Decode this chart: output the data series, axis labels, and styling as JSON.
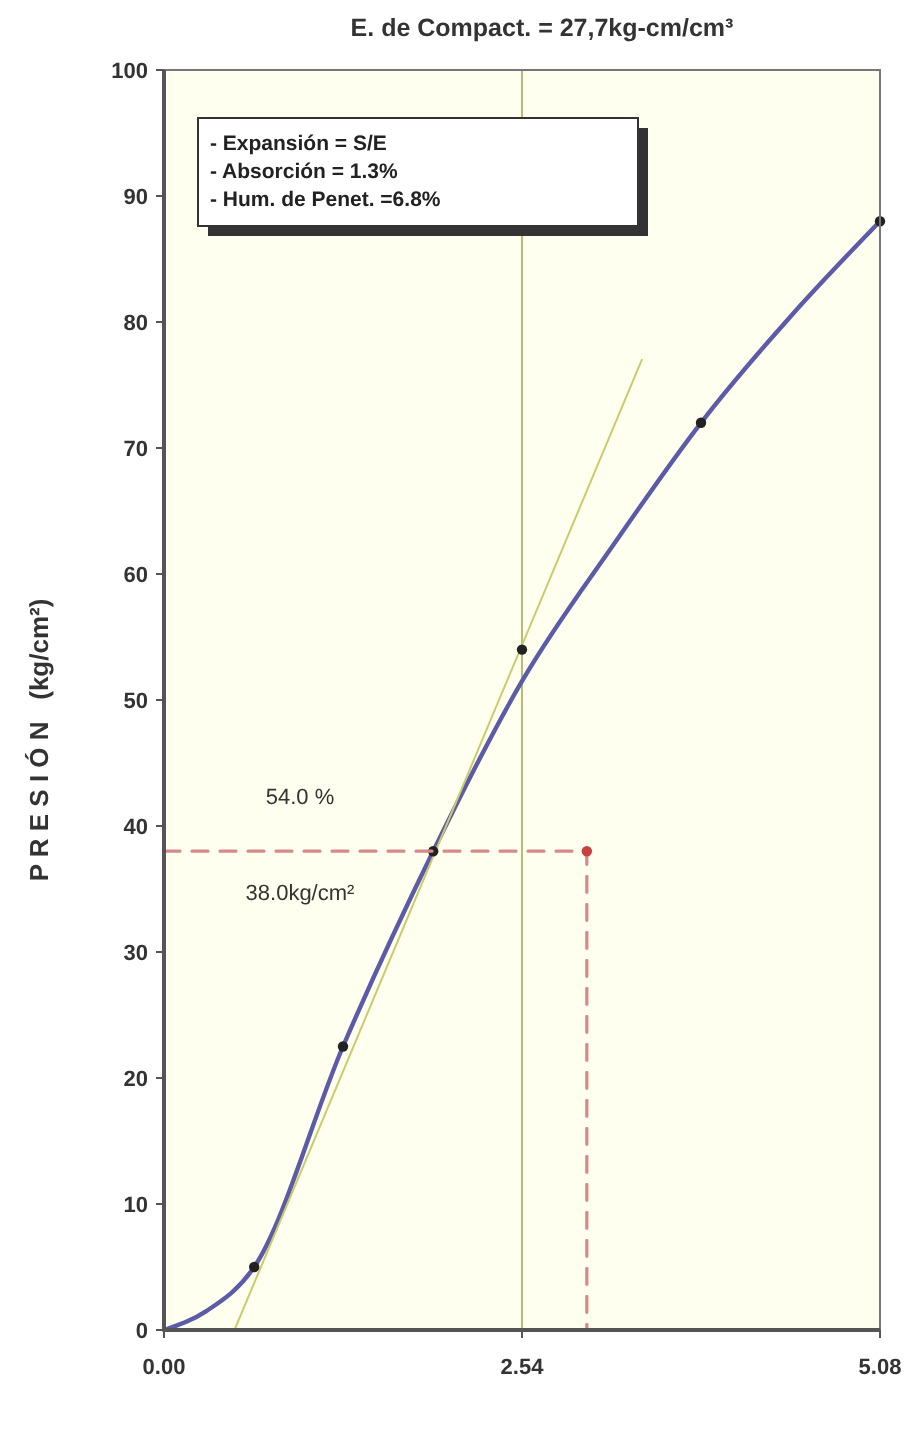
{
  "chart_data": {
    "type": "line",
    "title": "E. de Compact. = 27,7kg-cm/cm³",
    "ylabel": "P R E S I Ó N   (kg/cm²)",
    "xlim": [
      0,
      5.08
    ],
    "xticks": [
      {
        "value": 0,
        "label": "0.00"
      },
      {
        "value": 2.54,
        "label": "2.54"
      },
      {
        "value": 5.08,
        "label": "5.08"
      }
    ],
    "ylim": [
      0,
      100
    ],
    "yticks": [
      0,
      10,
      20,
      30,
      40,
      50,
      60,
      70,
      80,
      90,
      100
    ],
    "grid": false,
    "ref_lines": [
      {
        "axis": "x",
        "value": 2.54,
        "color": "#b4bf74",
        "line_style": "solid"
      }
    ],
    "annotations": [
      "- Expansión = S/E",
      "- Absorción = 1.3%",
      "- Hum. de Penet. =6.8%",
      "54.0 %",
      "38.0kg/cm²"
    ],
    "series": [
      {
        "color": "#5b5ba8",
        "line_style": "solid",
        "marker": "none",
        "x": [
          0,
          0.3,
          0.64,
          1.27,
          1.91,
          2.54,
          3.2,
          3.81,
          4.45,
          5.08
        ],
        "values": [
          0,
          1.5,
          5,
          22.5,
          38,
          51.5,
          62.5,
          72,
          80.5,
          88
        ]
      },
      {
        "color": "#c8cc6a",
        "line_style": "solid",
        "marker": "none",
        "x": [
          0.5,
          3.39
        ],
        "values": [
          0,
          77
        ]
      },
      {
        "type": "scatter",
        "color": "#222222",
        "marker": "circle",
        "x": [
          0.64,
          1.27,
          1.91,
          2.54,
          3.81,
          5.08
        ],
        "values": [
          5,
          22.5,
          38,
          54,
          72,
          88
        ]
      },
      {
        "color": "#d58a8a",
        "line_style": "dashed",
        "marker": "none",
        "x": [
          0,
          3,
          3
        ],
        "values": [
          38,
          38,
          0
        ]
      },
      {
        "type": "scatter",
        "color": "#c84040",
        "marker": "circle",
        "x": [
          3
        ],
        "values": [
          38
        ]
      }
    ]
  }
}
